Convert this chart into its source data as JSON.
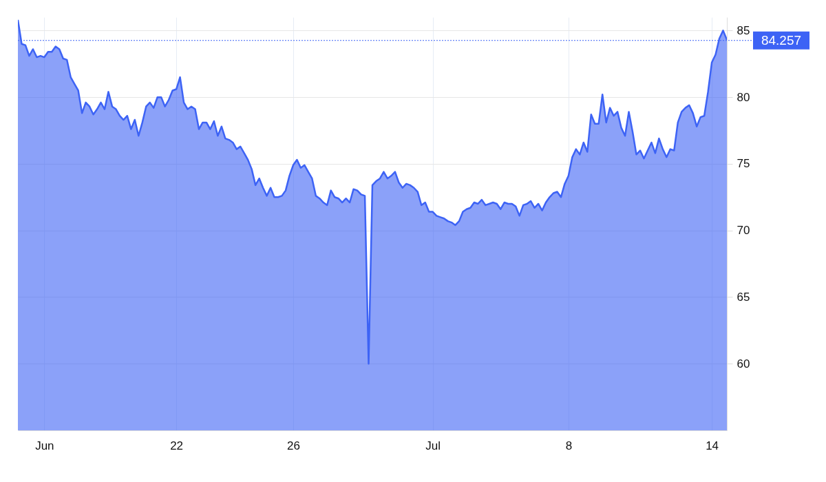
{
  "chart_data": {
    "type": "area",
    "categories": [
      null,
      null,
      null,
      null,
      null,
      null,
      null,
      "Jun",
      null,
      null,
      null,
      null,
      null,
      null,
      null,
      null,
      null,
      null,
      null,
      null,
      null,
      null,
      null,
      null,
      null,
      null,
      null,
      null,
      null,
      null,
      null,
      null,
      null,
      null,
      null,
      null,
      null,
      null,
      null,
      null,
      null,
      null,
      "22",
      null,
      null,
      null,
      null,
      null,
      null,
      null,
      null,
      null,
      null,
      null,
      null,
      null,
      null,
      null,
      null,
      null,
      null,
      null,
      null,
      null,
      null,
      null,
      null,
      null,
      null,
      null,
      null,
      null,
      null,
      "26",
      null,
      null,
      null,
      null,
      null,
      null,
      null,
      null,
      null,
      null,
      null,
      null,
      null,
      null,
      null,
      null,
      null,
      null,
      null,
      null,
      null,
      null,
      null,
      null,
      null,
      null,
      null,
      null,
      null,
      null,
      null,
      null,
      null,
      null,
      null,
      null,
      "Jul",
      null,
      null,
      null,
      null,
      null,
      null,
      null,
      null,
      null,
      null,
      null,
      null,
      null,
      null,
      null,
      null,
      null,
      null,
      null,
      null,
      null,
      null,
      null,
      null,
      null,
      null,
      null,
      null,
      null,
      null,
      null,
      null,
      null,
      null,
      null,
      "8",
      null,
      null,
      null,
      null,
      null,
      null,
      null,
      null,
      null,
      null,
      null,
      null,
      null,
      null,
      null,
      null,
      null,
      null,
      null,
      null,
      null,
      null,
      null,
      null,
      null,
      null,
      null,
      null,
      null,
      null,
      null,
      null,
      null,
      null,
      null,
      null,
      null,
      "14",
      null,
      null,
      null,
      null
    ],
    "series": [
      {
        "color": "#3d63f5",
        "values": [
          85.8,
          84.0,
          83.9,
          83.1,
          83.6,
          83.0,
          83.1,
          83.0,
          83.4,
          83.4,
          83.8,
          83.6,
          82.9,
          82.8,
          81.5,
          81.0,
          80.5,
          78.8,
          79.6,
          79.3,
          78.7,
          79.1,
          79.6,
          79.1,
          80.4,
          79.3,
          79.1,
          78.6,
          78.3,
          78.6,
          77.6,
          78.3,
          77.1,
          78.1,
          79.3,
          79.6,
          79.2,
          80.0,
          80.0,
          79.3,
          79.8,
          80.5,
          80.6,
          81.5,
          79.6,
          79.1,
          79.3,
          79.1,
          77.6,
          78.1,
          78.1,
          77.6,
          78.2,
          77.1,
          77.8,
          76.9,
          76.8,
          76.6,
          76.1,
          76.3,
          75.8,
          75.3,
          74.6,
          73.4,
          73.9,
          73.2,
          72.6,
          73.2,
          72.5,
          72.5,
          72.6,
          73.0,
          74.1,
          74.9,
          75.3,
          74.7,
          74.9,
          74.4,
          73.9,
          72.6,
          72.4,
          72.1,
          71.9,
          73.0,
          72.5,
          72.4,
          72.1,
          72.4,
          72.1,
          73.1,
          73.0,
          72.7,
          72.6,
          60.0,
          73.4,
          73.7,
          73.9,
          74.4,
          73.9,
          74.1,
          74.4,
          73.6,
          73.2,
          73.5,
          73.4,
          73.2,
          72.9,
          71.9,
          72.1,
          71.4,
          71.4,
          71.1,
          71.0,
          70.9,
          70.7,
          70.6,
          70.4,
          70.7,
          71.4,
          71.6,
          71.7,
          72.1,
          72.0,
          72.3,
          71.9,
          72.0,
          72.1,
          72.0,
          71.6,
          72.1,
          72.0,
          72.0,
          71.8,
          71.1,
          71.9,
          72.0,
          72.2,
          71.7,
          72.0,
          71.5,
          72.1,
          72.5,
          72.8,
          72.9,
          72.5,
          73.5,
          74.1,
          75.5,
          76.1,
          75.7,
          76.6,
          75.9,
          78.7,
          78.0,
          78.0,
          80.2,
          78.1,
          79.2,
          78.6,
          78.9,
          77.7,
          77.1,
          78.9,
          77.4,
          75.7,
          76.0,
          75.4,
          76.0,
          76.6,
          75.8,
          76.9,
          76.1,
          75.5,
          76.1,
          76.0,
          78.1,
          78.9,
          79.2,
          79.4,
          78.8,
          77.8,
          78.5,
          78.6,
          80.4,
          82.6,
          83.2,
          84.4,
          85.0,
          84.3
        ]
      }
    ],
    "ylim": [
      55,
      86
    ],
    "yticks": [
      60,
      65,
      70,
      75,
      80,
      85
    ],
    "grid": true,
    "ref_lines": [
      {
        "axis": "y",
        "value": 84.257,
        "label": "84.257",
        "color": "#3d63f5",
        "line_style": "dotted"
      }
    ]
  }
}
